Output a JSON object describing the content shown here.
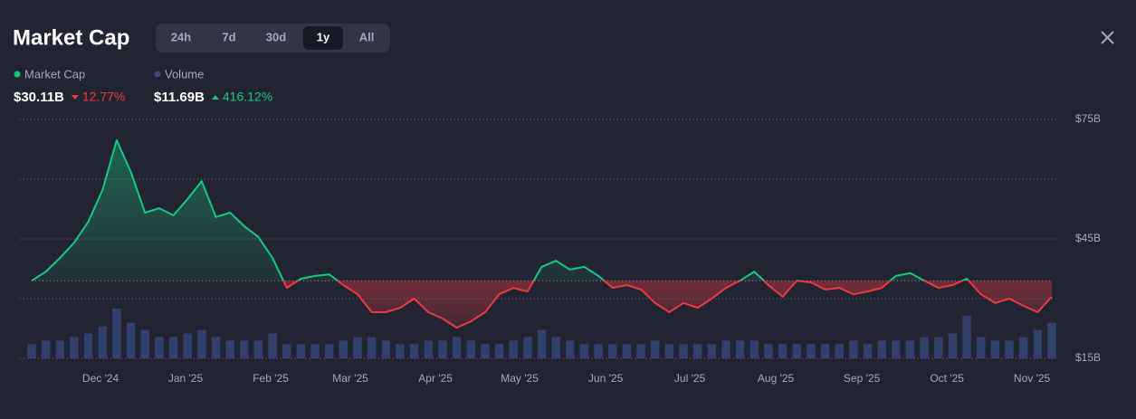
{
  "header": {
    "title": "Market Cap",
    "tabs": [
      "24h",
      "7d",
      "30d",
      "1y",
      "All"
    ],
    "active_tab": 3
  },
  "chart_data": {
    "type": "line",
    "series": [
      {
        "name": "Market Cap",
        "color": "#16c784",
        "down_color": "#ea3943",
        "value": "$30.11B",
        "change": "12.77%",
        "change_direction": "down",
        "values": [
          34.5,
          36.8,
          40.2,
          44.1,
          49.3,
          57.3,
          69.8,
          61.8,
          51.6,
          52.7,
          50.9,
          55.0,
          59.5,
          50.5,
          51.6,
          48.2,
          45.5,
          40.2,
          32.7,
          35.0,
          35.7,
          36.1,
          33.4,
          31.1,
          26.6,
          26.6,
          27.7,
          30.0,
          26.6,
          25.0,
          22.7,
          24.3,
          26.6,
          31.1,
          32.7,
          31.8,
          38.0,
          39.5,
          37.3,
          38.0,
          35.7,
          32.7,
          33.4,
          32.3,
          28.9,
          26.6,
          28.9,
          27.7,
          30.0,
          32.7,
          34.5,
          36.8,
          33.4,
          30.5,
          34.5,
          34.1,
          32.3,
          32.7,
          31.1,
          31.8,
          32.7,
          35.7,
          36.4,
          34.5,
          32.7,
          33.4,
          35.0,
          31.1,
          28.9,
          30.0,
          28.2,
          26.6,
          30.5
        ]
      },
      {
        "name": "Volume",
        "color": "#3b4a80",
        "value": "$11.69B",
        "change": "416.12%",
        "change_direction": "up",
        "values": [
          4,
          5,
          5,
          6,
          7,
          9,
          14,
          10,
          8,
          6,
          6,
          7,
          8,
          6,
          5,
          5,
          5,
          7,
          4,
          4,
          4,
          4,
          5,
          6,
          6,
          5,
          4,
          4,
          5,
          5,
          6,
          5,
          4,
          4,
          5,
          6,
          8,
          6,
          5,
          4,
          4,
          4,
          4,
          4,
          5,
          4,
          4,
          4,
          4,
          5,
          5,
          5,
          4,
          4,
          4,
          4,
          4,
          4,
          5,
          4,
          5,
          5,
          5,
          6,
          6,
          7,
          12,
          6,
          5,
          5,
          6,
          8,
          10
        ]
      }
    ],
    "xlim": [
      0,
      72
    ],
    "xticks": [
      {
        "value": 4.86,
        "label": "Dec '24"
      },
      {
        "value": 10.86,
        "label": "Jan '25"
      },
      {
        "value": 16.87,
        "label": "Feb '25"
      },
      {
        "value": 22.49,
        "label": "Mar '25"
      },
      {
        "value": 28.5,
        "label": "Apr '25"
      },
      {
        "value": 34.44,
        "label": "May '25"
      },
      {
        "value": 40.51,
        "label": "Jun '25"
      },
      {
        "value": 46.45,
        "label": "Jul '25"
      },
      {
        "value": 52.52,
        "label": "Aug '25"
      },
      {
        "value": 58.59,
        "label": "Sep '25"
      },
      {
        "value": 64.6,
        "label": "Oct '25"
      },
      {
        "value": 70.6,
        "label": "Nov '25"
      }
    ],
    "ylim": [
      15,
      75
    ],
    "yticks": [
      {
        "value": 75,
        "label": "$75B"
      },
      {
        "value": 45,
        "label": "$45B"
      },
      {
        "value": 15,
        "label": "$15B"
      }
    ],
    "ygrid": [
      75,
      60,
      45,
      30,
      15
    ]
  }
}
